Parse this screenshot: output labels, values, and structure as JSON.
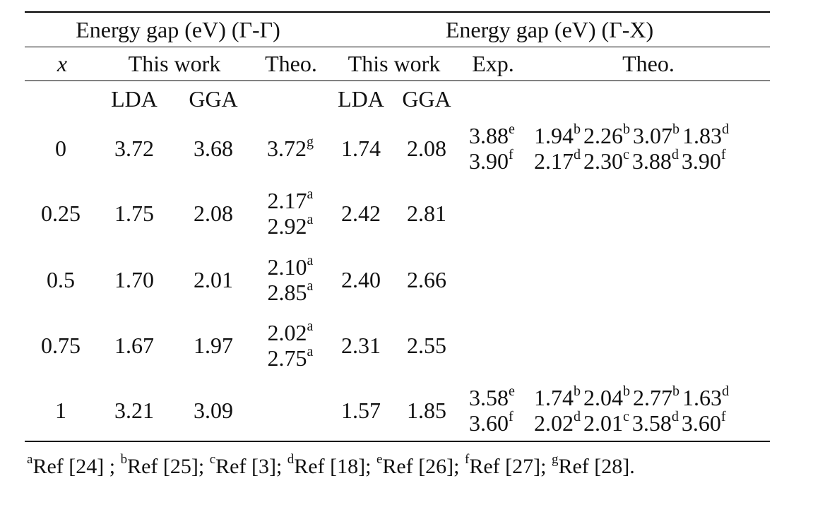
{
  "header": {
    "gap_gg": "Energy gap (eV) (Γ-Γ)",
    "gap_gx": "Energy gap (eV) (Γ-X)",
    "x_label": "x",
    "this_work_1": "This work",
    "theo_1": "Theo.",
    "this_work_2": "This work",
    "exp": "Exp.",
    "theo_2": "Theo.",
    "lda_1": "LDA",
    "gga_1": "GGA",
    "lda_2": "LDA",
    "gga_2": "GGA"
  },
  "rows": [
    {
      "x": "0",
      "lda_gg": "3.72",
      "gga_gg": "3.68",
      "theo_gg": [
        {
          "v": "3.72",
          "s": "g"
        }
      ],
      "lda_gx": "1.74",
      "gga_gx": "2.08",
      "exp": [
        {
          "v": "3.88",
          "s": "e"
        },
        {
          "v": "3.90",
          "s": "f"
        }
      ],
      "theo_gx": [
        [
          {
            "v": "1.94",
            "s": "b"
          },
          {
            "v": "2.26",
            "s": "b"
          },
          {
            "v": "3.07",
            "s": "b"
          },
          {
            "v": "1.83",
            "s": "d"
          }
        ],
        [
          {
            "v": "2.17",
            "s": "d"
          },
          {
            "v": "2.30",
            "s": "c"
          },
          {
            "v": "3.88",
            "s": "d"
          },
          {
            "v": "3.90",
            "s": "f"
          }
        ]
      ]
    },
    {
      "x": "0.25",
      "lda_gg": "1.75",
      "gga_gg": "2.08",
      "theo_gg": [
        {
          "v": "2.17",
          "s": "a"
        },
        {
          "v": "2.92",
          "s": "a"
        }
      ],
      "lda_gx": "2.42",
      "gga_gx": "2.81",
      "exp": [],
      "theo_gx": []
    },
    {
      "x": "0.5",
      "lda_gg": "1.70",
      "gga_gg": "2.01",
      "theo_gg": [
        {
          "v": "2.10",
          "s": "a"
        },
        {
          "v": "2.85",
          "s": "a"
        }
      ],
      "lda_gx": "2.40",
      "gga_gx": "2.66",
      "exp": [],
      "theo_gx": []
    },
    {
      "x": "0.75",
      "lda_gg": "1.67",
      "gga_gg": "1.97",
      "theo_gg": [
        {
          "v": "2.02",
          "s": "a"
        },
        {
          "v": "2.75",
          "s": "a"
        }
      ],
      "lda_gx": "2.31",
      "gga_gx": "2.55",
      "exp": [],
      "theo_gx": []
    },
    {
      "x": "1",
      "lda_gg": "3.21",
      "gga_gg": "3.09",
      "theo_gg": [],
      "lda_gx": "1.57",
      "gga_gx": "1.85",
      "exp": [
        {
          "v": "3.58",
          "s": "e"
        },
        {
          "v": "3.60",
          "s": "f"
        }
      ],
      "theo_gx": [
        [
          {
            "v": "1.74",
            "s": "b"
          },
          {
            "v": "2.04",
            "s": "b"
          },
          {
            "v": "2.77",
            "s": "b"
          },
          {
            "v": "1.63",
            "s": "d"
          }
        ],
        [
          {
            "v": "2.02",
            "s": "d"
          },
          {
            "v": "2.01",
            "s": "c"
          },
          {
            "v": "3.58",
            "s": "d"
          },
          {
            "v": "3.60",
            "s": "f"
          }
        ]
      ]
    }
  ],
  "footnote": [
    {
      "s": "a",
      "t": "Ref [24] ; "
    },
    {
      "s": "b",
      "t": "Ref [25]; "
    },
    {
      "s": "c",
      "t": "Ref [3]; "
    },
    {
      "s": "d",
      "t": "Ref [18]; "
    },
    {
      "s": "e",
      "t": "Ref [26]; "
    },
    {
      "s": "f",
      "t": "Ref [27]; "
    },
    {
      "s": "g",
      "t": "Ref [28]."
    }
  ]
}
